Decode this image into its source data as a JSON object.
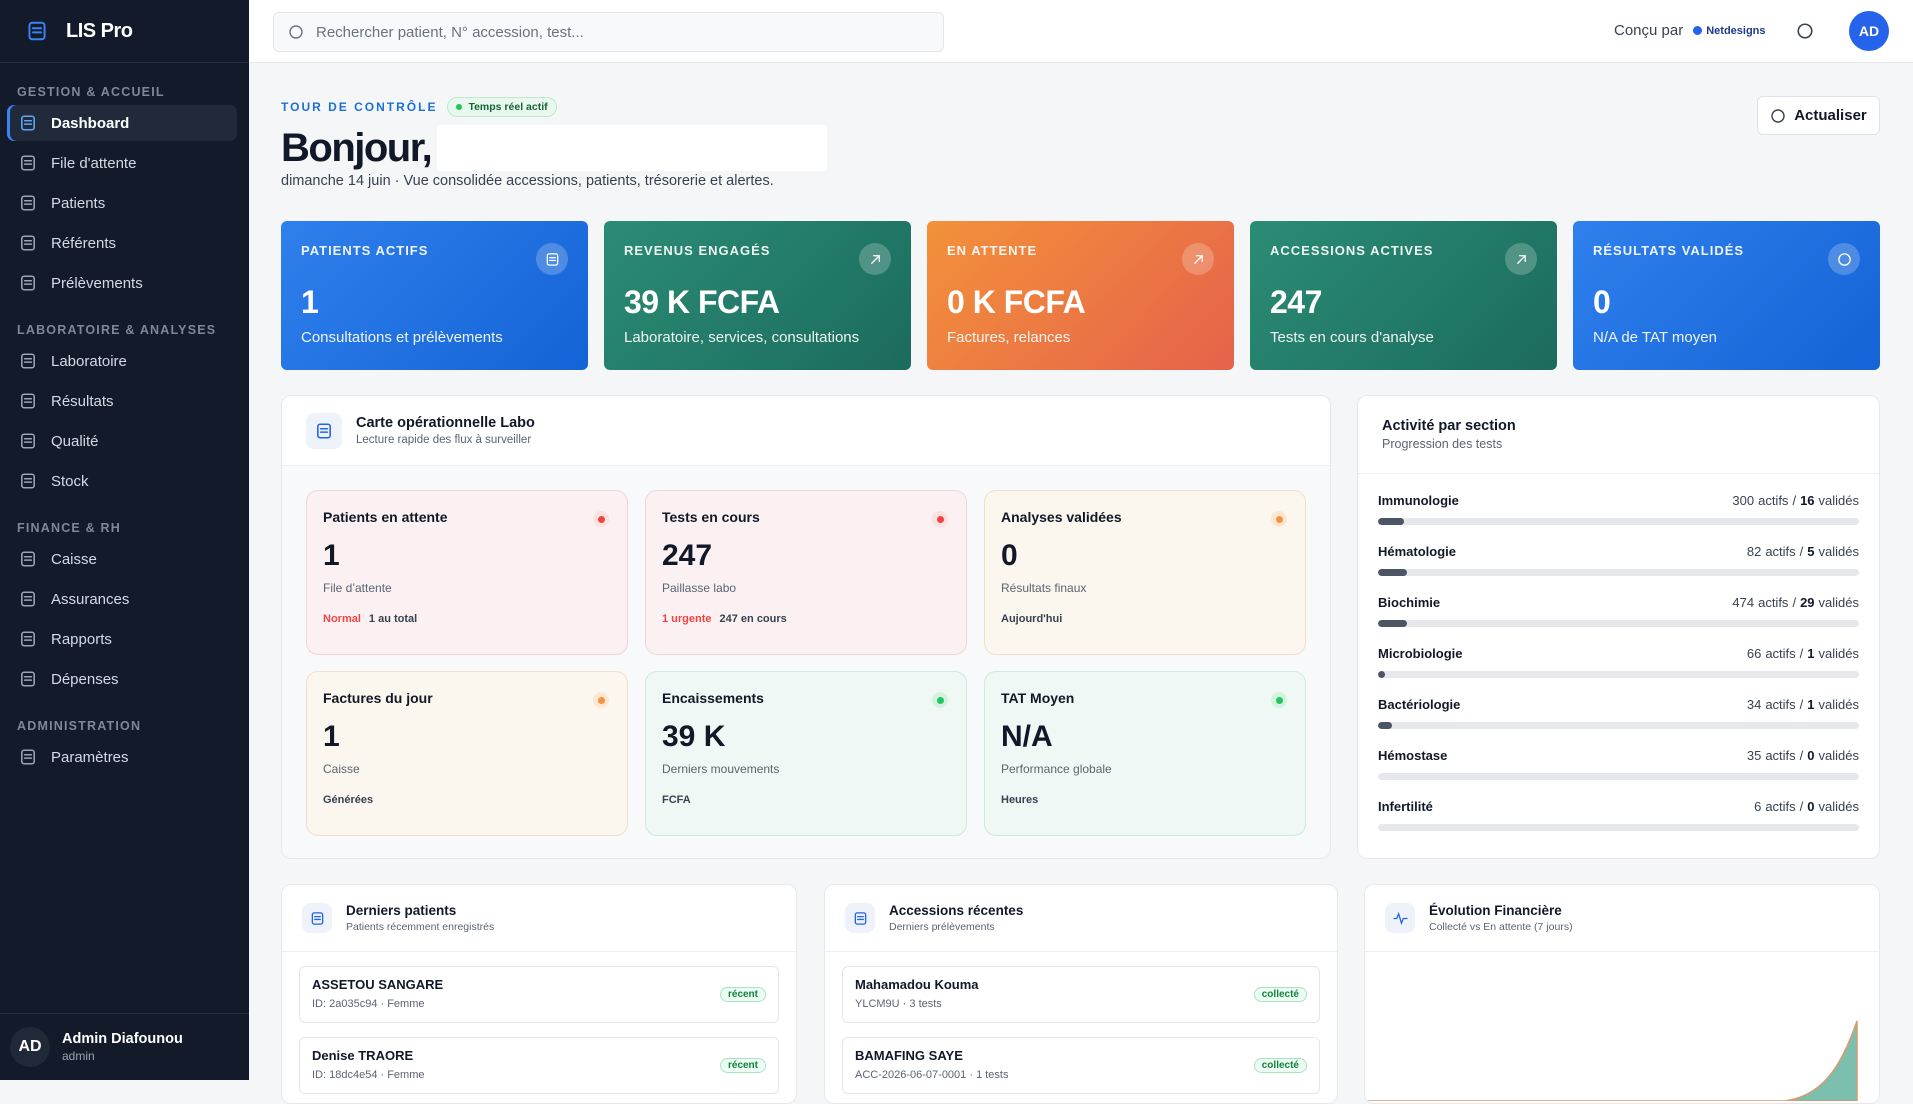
{
  "brand": "LIS Pro",
  "sidebar": {
    "sections": [
      {
        "title": "GESTION & ACCUEIL",
        "items": [
          "Dashboard",
          "File d'attente",
          "Patients",
          "Référents",
          "Prélèvements"
        ]
      },
      {
        "title": "LABORATOIRE & ANALYSES",
        "items": [
          "Laboratoire",
          "Résultats",
          "Qualité",
          "Stock"
        ]
      },
      {
        "title": "FINANCE & RH",
        "items": [
          "Caisse",
          "Assurances",
          "Rapports",
          "Dépenses"
        ]
      },
      {
        "title": "ADMINISTRATION",
        "items": [
          "Paramètres"
        ]
      }
    ],
    "user": {
      "initials": "AD",
      "name": "Admin Diafounou",
      "role": "admin"
    }
  },
  "topbar": {
    "search_placeholder": "Rechercher patient, N° accession, test...",
    "credit": "Conçu par",
    "credit_brand": "Netdesigns",
    "avatar": "AD"
  },
  "header": {
    "eyebrow": "TOUR DE CONTRÔLE",
    "badge": "Temps réel actif",
    "greeting": "Bonjour,",
    "subtitle": "dimanche 14 juin · Vue consolidée accessions, patients, trésorerie et alertes.",
    "button": "Actualiser"
  },
  "kpis": [
    {
      "label": "PATIENTS ACTIFS",
      "value": 1,
      "caption": "Consultations et prélèvements",
      "color": "blue"
    },
    {
      "label": "REVENUS ENGAGÉS",
      "value": "39 K FCFA",
      "caption": "Laboratoire, services, consultations",
      "color": "green"
    },
    {
      "label": "EN ATTENTE",
      "value": "0 K FCFA",
      "caption": "Factures, relances",
      "color": "orange"
    },
    {
      "label": "ACCESSIONS ACTIVES",
      "value": 247,
      "caption": "Tests en cours d'analyse",
      "color": "green"
    },
    {
      "label": "RÉSULTATS VALIDÉS",
      "value": 0,
      "caption": "N/A de TAT moyen",
      "color": "blue"
    }
  ],
  "ops": {
    "title": "Carte opérationnelle Labo",
    "subtitle": "Lecture rapide des flux à surveiller",
    "cards": [
      {
        "title": "Patients en attente",
        "value": 1,
        "caption": "File d’attente",
        "status": "red",
        "footer": [
          {
            "text": "Normal",
            "tone": "red"
          },
          {
            "text": "1 au total"
          }
        ]
      },
      {
        "title": "Tests en cours",
        "value": 247,
        "caption": "Paillasse labo",
        "status": "red",
        "footer": [
          {
            "text": "1 urgente",
            "tone": "red"
          },
          {
            "text": "247 en cours"
          }
        ]
      },
      {
        "title": "Analyses validées",
        "value": 0,
        "caption": "Résultats finaux",
        "status": "orange",
        "footer": [
          {
            "text": "Aujourd'hui"
          }
        ]
      },
      {
        "title": "Factures du jour",
        "value": 1,
        "caption": "Caisse",
        "status": "orange",
        "footer": [
          {
            "text": "Générées"
          }
        ]
      },
      {
        "title": "Encaissements",
        "value": "39 K",
        "caption": "Derniers mouvements",
        "status": "green",
        "footer": [
          {
            "text": "FCFA"
          }
        ]
      },
      {
        "title": "TAT Moyen",
        "value": "N/A",
        "caption": "Performance globale",
        "status": "green",
        "footer": [
          {
            "text": "Heures"
          }
        ]
      }
    ]
  },
  "activity": {
    "title": "Activité par section",
    "subtitle": "Progression des tests",
    "active_label": "actifs",
    "separator": "/",
    "valid_label": "validés",
    "sections": [
      {
        "name": "Immunologie",
        "actifs": 300,
        "valides": 16
      },
      {
        "name": "Hématologie",
        "actifs": 82,
        "valides": 5
      },
      {
        "name": "Biochimie",
        "actifs": 474,
        "valides": 29
      },
      {
        "name": "Microbiologie",
        "actifs": 66,
        "valides": 1
      },
      {
        "name": "Bactériologie",
        "actifs": 34,
        "valides": 1
      },
      {
        "name": "Hémostase",
        "actifs": 35,
        "valides": 0
      },
      {
        "name": "Infertilité",
        "actifs": 6,
        "valides": 0
      }
    ]
  },
  "panels": [
    {
      "title": "Derniers patients",
      "subtitle": "Patients récemment enregistrés",
      "rows": [
        {
          "name": "ASSETOU SANGARE",
          "meta": "ID: 2a035c94 · Femme",
          "badge": "récent"
        },
        {
          "name": "Denise TRAORE",
          "meta": "ID: 18dc4e54 · Femme",
          "badge": "récent"
        }
      ]
    },
    {
      "title": "Accessions récentes",
      "subtitle": "Derniers prélèvements",
      "rows": [
        {
          "name": "Mahamadou Kouma",
          "meta": "YLCM9U · 3 tests",
          "badge": "collecté"
        },
        {
          "name": "BAMAFING SAYE",
          "meta": "ACC-2026-06-07-0001 · 1 tests",
          "badge": "collecté"
        }
      ]
    },
    {
      "title": "Évolution Financière",
      "subtitle": "Collecté vs En attente (7 jours)",
      "rows": []
    }
  ]
}
